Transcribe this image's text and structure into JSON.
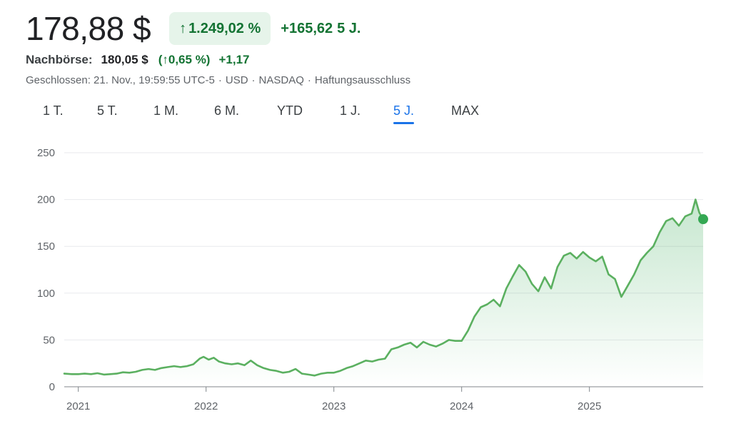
{
  "header": {
    "price": "178,88 $",
    "pct_change": "1.249,02 %",
    "abs_change": "+165,62",
    "period": "5 J.",
    "arrow_icon": "arrow-up-icon"
  },
  "after_hours": {
    "label": "Nachbörse:",
    "price": "180,05 $",
    "pct": "(↑0,65 %)",
    "abs": "+1,17"
  },
  "meta": {
    "closed": "Geschlossen: 21. Nov., 19:59:55 UTC-5",
    "currency": "USD",
    "exchange": "NASDAQ",
    "disclaimer": "Haftungsausschluss"
  },
  "tabs": [
    {
      "label": "1 T.",
      "active": false
    },
    {
      "label": "5 T.",
      "active": false
    },
    {
      "label": "1 M.",
      "active": false
    },
    {
      "label": "6 M.",
      "active": false
    },
    {
      "label": "YTD",
      "active": false
    },
    {
      "label": "1 J.",
      "active": false
    },
    {
      "label": "5 J.",
      "active": true
    },
    {
      "label": "MAX",
      "active": false
    }
  ],
  "colors": {
    "line": "#5bb060",
    "fill": "#34a853",
    "grid": "#e8eaed",
    "positive": "#137333",
    "accent": "#1a73e8"
  },
  "chart_data": {
    "type": "area",
    "ylim": [
      0,
      250
    ],
    "yticks": [
      "0",
      "50",
      "100",
      "150",
      "200",
      "250"
    ],
    "xticks": [
      {
        "label": "2021",
        "x": 2021.0
      },
      {
        "label": "2022",
        "x": 2022.0
      },
      {
        "label": "2023",
        "x": 2023.0
      },
      {
        "label": "2024",
        "x": 2024.0
      },
      {
        "label": "2025",
        "x": 2025.0
      }
    ],
    "xlim": [
      2020.89,
      2025.89
    ],
    "series": [
      {
        "points": [
          [
            2020.89,
            14
          ],
          [
            2020.95,
            13.5
          ],
          [
            2021.0,
            13.5
          ],
          [
            2021.05,
            14
          ],
          [
            2021.1,
            13.5
          ],
          [
            2021.15,
            14.5
          ],
          [
            2021.2,
            13
          ],
          [
            2021.25,
            13.5
          ],
          [
            2021.3,
            14
          ],
          [
            2021.35,
            15.5
          ],
          [
            2021.4,
            15
          ],
          [
            2021.45,
            16
          ],
          [
            2021.5,
            18
          ],
          [
            2021.55,
            19
          ],
          [
            2021.6,
            18
          ],
          [
            2021.65,
            20
          ],
          [
            2021.7,
            21
          ],
          [
            2021.75,
            22
          ],
          [
            2021.8,
            21
          ],
          [
            2021.85,
            22
          ],
          [
            2021.9,
            24
          ],
          [
            2021.95,
            30
          ],
          [
            2021.98,
            32
          ],
          [
            2022.02,
            29
          ],
          [
            2022.06,
            31
          ],
          [
            2022.1,
            27
          ],
          [
            2022.15,
            25
          ],
          [
            2022.2,
            24
          ],
          [
            2022.25,
            25
          ],
          [
            2022.3,
            23
          ],
          [
            2022.35,
            28
          ],
          [
            2022.4,
            23
          ],
          [
            2022.45,
            20
          ],
          [
            2022.5,
            18
          ],
          [
            2022.55,
            17
          ],
          [
            2022.6,
            15
          ],
          [
            2022.65,
            16
          ],
          [
            2022.7,
            19
          ],
          [
            2022.75,
            14
          ],
          [
            2022.8,
            13
          ],
          [
            2022.85,
            12
          ],
          [
            2022.9,
            14
          ],
          [
            2022.95,
            15
          ],
          [
            2023.0,
            15
          ],
          [
            2023.05,
            17
          ],
          [
            2023.1,
            20
          ],
          [
            2023.15,
            22
          ],
          [
            2023.2,
            25
          ],
          [
            2023.25,
            28
          ],
          [
            2023.3,
            27
          ],
          [
            2023.35,
            29
          ],
          [
            2023.4,
            30
          ],
          [
            2023.45,
            40
          ],
          [
            2023.5,
            42
          ],
          [
            2023.55,
            45
          ],
          [
            2023.6,
            47
          ],
          [
            2023.65,
            42
          ],
          [
            2023.7,
            48
          ],
          [
            2023.75,
            45
          ],
          [
            2023.8,
            43
          ],
          [
            2023.85,
            46
          ],
          [
            2023.9,
            50
          ],
          [
            2023.95,
            49
          ],
          [
            2024.0,
            49
          ],
          [
            2024.05,
            60
          ],
          [
            2024.1,
            75
          ],
          [
            2024.15,
            85
          ],
          [
            2024.2,
            88
          ],
          [
            2024.25,
            93
          ],
          [
            2024.3,
            86
          ],
          [
            2024.35,
            105
          ],
          [
            2024.4,
            118
          ],
          [
            2024.45,
            130
          ],
          [
            2024.5,
            123
          ],
          [
            2024.55,
            110
          ],
          [
            2024.6,
            102
          ],
          [
            2024.65,
            117
          ],
          [
            2024.7,
            105
          ],
          [
            2024.75,
            128
          ],
          [
            2024.8,
            140
          ],
          [
            2024.85,
            143
          ],
          [
            2024.9,
            137
          ],
          [
            2024.95,
            144
          ],
          [
            2025.0,
            138
          ],
          [
            2025.05,
            134
          ],
          [
            2025.1,
            139
          ],
          [
            2025.15,
            120
          ],
          [
            2025.2,
            115
          ],
          [
            2025.25,
            96
          ],
          [
            2025.3,
            108
          ],
          [
            2025.35,
            120
          ],
          [
            2025.4,
            135
          ],
          [
            2025.45,
            143
          ],
          [
            2025.5,
            150
          ],
          [
            2025.55,
            165
          ],
          [
            2025.6,
            177
          ],
          [
            2025.65,
            180
          ],
          [
            2025.7,
            172
          ],
          [
            2025.75,
            182
          ],
          [
            2025.8,
            185
          ],
          [
            2025.83,
            200
          ],
          [
            2025.86,
            186
          ],
          [
            2025.89,
            179
          ]
        ]
      }
    ]
  }
}
